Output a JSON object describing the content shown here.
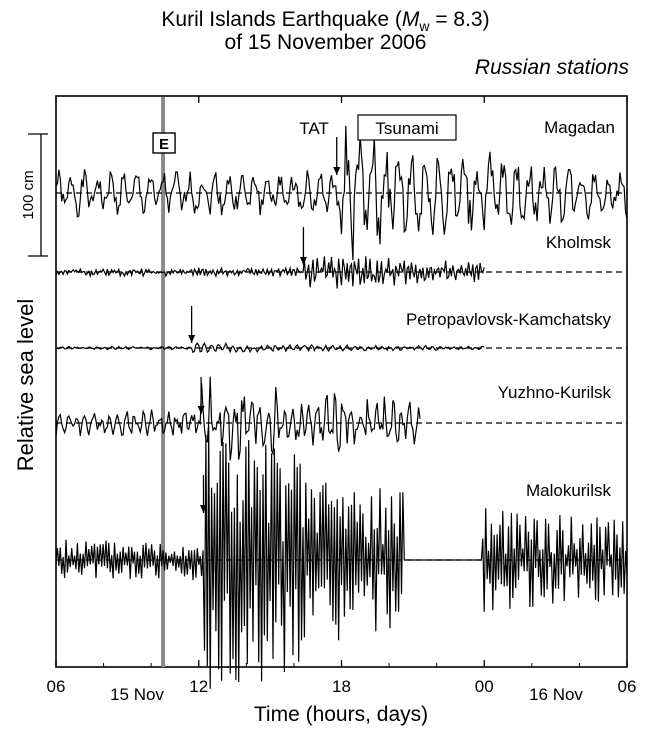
{
  "chart_data": {
    "type": "line",
    "title_prefix": "Kuril Islands Earthquake  (",
    "title_M": "M",
    "title_sub": "w",
    "title_suffix": " = 8.3)",
    "title_line2": "of 15 November 2006",
    "subtitle": "Russian stations",
    "xlabel": "Time (hours, days)",
    "ylabel": "Relative sea level",
    "x_ticks": [
      "06",
      "12",
      "18",
      "00",
      "06"
    ],
    "x_tick_hours": [
      6,
      12,
      18,
      24,
      30
    ],
    "date_labels": [
      "15 Nov",
      "16 Nov"
    ],
    "xlim_hours": [
      6,
      30
    ],
    "event_marker": {
      "label": "E",
      "hour": 10.5
    },
    "scale_bar": {
      "label": "100 cm",
      "value_cm": 100
    },
    "tsunami_box_label": "Tsunami",
    "tat_label": "TAT",
    "grid": false,
    "series": [
      {
        "name": "Magadan",
        "tsunami_arrival_hour": 17.8,
        "record_end_hour": 30.0,
        "max_amplitude_cm": 55,
        "peak_to_peak_cm": 85
      },
      {
        "name": "Kholmsk",
        "tsunami_arrival_hour": 16.4,
        "record_end_hour": 24.0,
        "max_amplitude_cm": 15,
        "peak_to_peak_cm": 25
      },
      {
        "name": "Petropavlovsk-Kamchatsky",
        "tsunami_arrival_hour": 11.7,
        "record_end_hour": 24.0,
        "max_amplitude_cm": 5,
        "peak_to_peak_cm": 10
      },
      {
        "name": "Yuzhno-Kurilsk",
        "tsunami_arrival_hour": 12.1,
        "record_end_hour": 21.3,
        "max_amplitude_cm": 50,
        "peak_to_peak_cm": 60
      },
      {
        "name": "Malokurilsk",
        "tsunami_arrival_hour": 12.2,
        "record_end_hour": 30.0,
        "max_amplitude_cm": 110,
        "peak_to_peak_cm": 190
      }
    ]
  }
}
